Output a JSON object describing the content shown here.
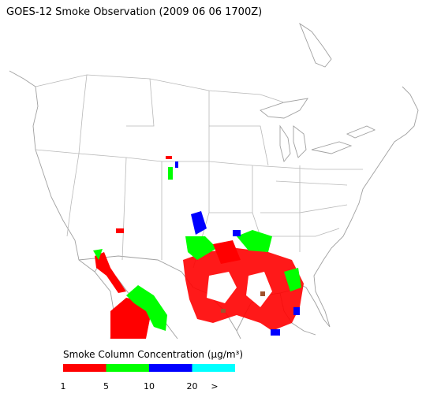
{
  "title": "GOES-12 Smoke Observation (2009 06 06  1700Z)",
  "legend": {
    "title": "Smoke Column Concentration (μg/m³)",
    "colors": [
      "#ff0000",
      "#00ff00",
      "#0000ff",
      "#00ffff"
    ],
    "tick_labels": [
      "1",
      "5",
      "10",
      "20",
      ">"
    ]
  }
}
